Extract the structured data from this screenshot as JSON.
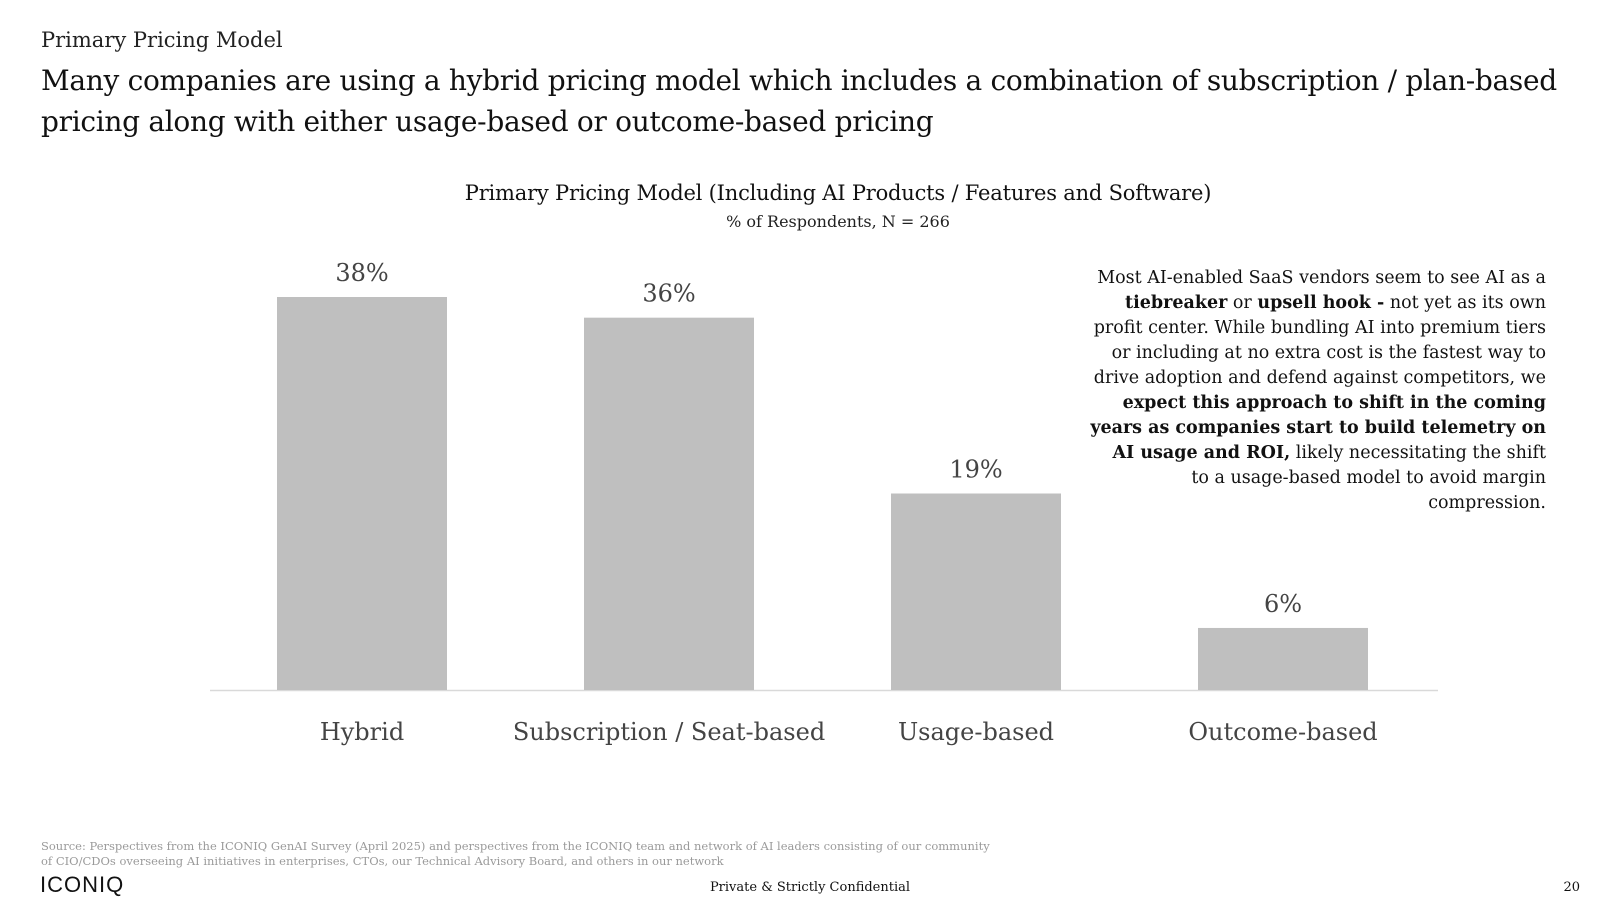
{
  "header": {
    "section_label": "Primary Pricing Model",
    "headline": "Many companies are using a hybrid pricing model which includes a combination of subscription / plan-based pricing along with either usage-based or outcome-based pricing"
  },
  "chart_data": {
    "type": "bar",
    "title": "Primary Pricing Model (Including AI Products / Features and Software)",
    "subtitle": "% of Respondents, N = 266",
    "categories": [
      "Hybrid",
      "Subscription / Seat-based",
      "Usage-based",
      "Outcome-based"
    ],
    "values": [
      38,
      36,
      19,
      6
    ],
    "data_labels": [
      "38%",
      "36%",
      "19%",
      "6%"
    ],
    "xlabel": "",
    "ylabel": "",
    "ylim": [
      0,
      40
    ],
    "grid": false,
    "bar_color": "#bfbfbf",
    "axis_color": "#d9d9d9",
    "label_color": "#444444"
  },
  "annotation": {
    "p1": "Most AI-enabled SaaS vendors seem to see AI as a",
    "b1": "tiebreaker",
    "p2": " or ",
    "b2": "upsell hook -",
    "p3": " not yet as its own profit center. While bundling AI into premium tiers or including at no extra cost is the fastest way to drive adoption and defend against competitors, we",
    "b3": "expect this approach to shift in the coming years as companies start to build telemetry on AI usage and ROI,",
    "p4": " likely necessitating the shift to a usage-based model to avoid margin compression."
  },
  "footer": {
    "source": "Source: Perspectives from the ICONIQ GenAI Survey (April 2025) and perspectives from the ICONIQ team and network of AI leaders consisting of our community of CIO/CDOs overseeing AI initiatives in enterprises, CTOs, our Technical Advisory Board, and others in our network",
    "logo": "ICONIQ",
    "confidential": "Private & Strictly Confidential",
    "page_number": "20"
  }
}
